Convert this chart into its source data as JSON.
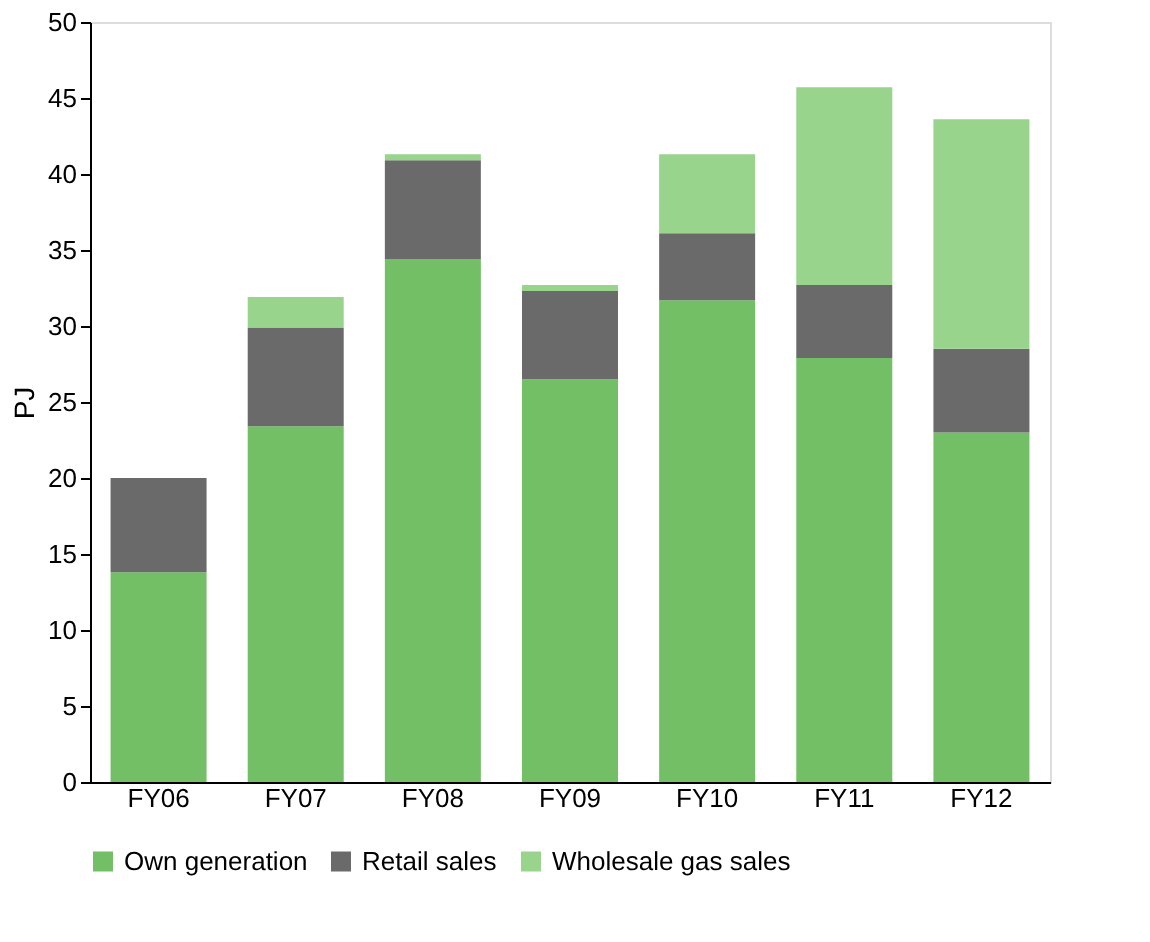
{
  "chart_data": {
    "type": "bar",
    "stacked": true,
    "ylabel": "PJ",
    "categories": [
      "FY06",
      "FY07",
      "FY08",
      "FY09",
      "FY10",
      "FY11",
      "FY12"
    ],
    "series": [
      {
        "name": "Own generation",
        "color": "#72bf65",
        "values": [
          13.8,
          23.4,
          34.4,
          26.5,
          31.7,
          27.9,
          23.0
        ]
      },
      {
        "name": "Retail sales",
        "color": "#6a6a6a",
        "values": [
          6.2,
          6.5,
          6.5,
          5.8,
          4.4,
          4.8,
          5.5
        ]
      },
      {
        "name": "Wholesale gas sales",
        "color": "#98d48c",
        "values": [
          0,
          2.0,
          0.4,
          0.4,
          5.2,
          13.0,
          15.1
        ]
      }
    ],
    "ylim": [
      0,
      50
    ],
    "yticks": [
      0,
      5,
      10,
      15,
      20,
      25,
      30,
      35,
      40,
      45,
      50
    ],
    "grid": false,
    "legend": "bottom"
  }
}
